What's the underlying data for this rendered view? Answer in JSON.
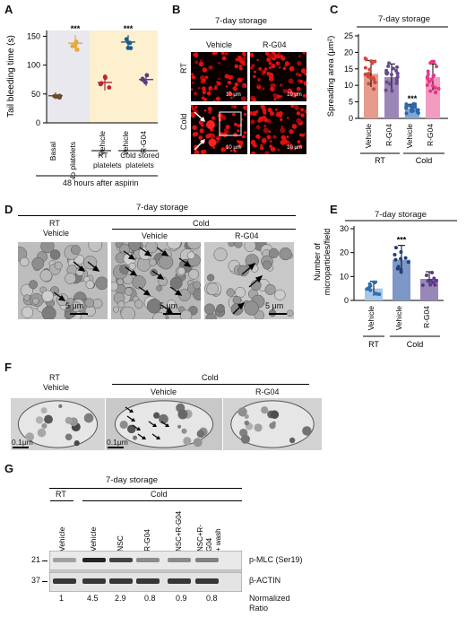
{
  "panels": {
    "A": "A",
    "B": "B",
    "C": "C",
    "D": "D",
    "E": "E",
    "F": "F",
    "G": "G"
  },
  "panelA": {
    "ylabel": "Tail bleeding time (s)",
    "categories": [
      "Basal",
      "No platelets",
      "Vehicle",
      "Vehicle",
      "R-G04"
    ],
    "group1": "RT platelets",
    "group2": "Cold stored platelets",
    "footer": "48 hours after aspirin",
    "yticks": [
      "0",
      "50",
      "100",
      "150"
    ],
    "sig": "***"
  },
  "panelB": {
    "title": "7-day storage",
    "cols": [
      "Vehicle",
      "R-G04"
    ],
    "rows": [
      "RT",
      "Cold"
    ],
    "scale": "10 μm"
  },
  "panelC": {
    "title": "7-day storage",
    "ylabel": "Spreading area (μm²)",
    "categories": [
      "Vehicle",
      "R-G04",
      "Vehicle",
      "R-G04"
    ],
    "groups": [
      "RT",
      "Cold"
    ],
    "yticks": [
      "0",
      "5",
      "10",
      "15",
      "20",
      "25"
    ],
    "sig": "***"
  },
  "panelD": {
    "title": "7-day storage",
    "rt": "RT",
    "rt_sub": "Vehicle",
    "cold": "Cold",
    "cold_labels": [
      "Vehicle",
      "R-G04"
    ],
    "scale": "5 μm"
  },
  "panelE": {
    "title": "7-day storage",
    "ylabel": "Number of microparticles/field",
    "categories": [
      "Vehicle",
      "Vehicle",
      "R-G04"
    ],
    "groups": [
      "RT",
      "Cold"
    ],
    "yticks": [
      "0",
      "10",
      "20",
      "30"
    ],
    "sig": "***"
  },
  "panelF": {
    "rt": "RT",
    "rt_sub": "Vehicle",
    "cold": "Cold",
    "cold_labels": [
      "Vehicle",
      "R-G04"
    ],
    "scale": "0.1μm"
  },
  "panelG": {
    "title": "7-day storage",
    "rt": "RT",
    "cold": "Cold",
    "lanes": [
      "Vehicle",
      "Vehicle",
      "NSC",
      "R-G04",
      "NSC+R-G04",
      "NSC+R-G04 + wash"
    ],
    "mw": [
      "21",
      "37"
    ],
    "bands": [
      "p-MLC (Ser19)",
      "β-ACTIN"
    ],
    "ratios": [
      "1",
      "4.5",
      "2.9",
      "0.8",
      "0.9",
      "0.8"
    ],
    "ratio_label": "Normalized Ratio"
  },
  "chart_data": [
    {
      "type": "scatter",
      "ylabel": "Tail bleeding time (s)",
      "categories": [
        "Basal",
        "No platelets",
        "RT platelets Vehicle",
        "Cold stored platelets Vehicle",
        "Cold stored platelets R-G04"
      ],
      "means": [
        47,
        138,
        70,
        140,
        75
      ],
      "sd": [
        6,
        14,
        14,
        12,
        11
      ],
      "ylim": [
        0,
        160
      ]
    },
    {
      "type": "bar",
      "ylabel": "Spreading area (μm²)",
      "categories": [
        "RT Vehicle",
        "RT R-G04",
        "Cold Vehicle",
        "Cold R-G04"
      ],
      "values": [
        13.5,
        12.5,
        3.0,
        12.5
      ],
      "sd": [
        4,
        4,
        1.3,
        4
      ],
      "ylim": [
        0,
        25
      ]
    },
    {
      "type": "bar",
      "ylabel": "Number of microparticles/field",
      "categories": [
        "RT Vehicle",
        "Cold Vehicle",
        "Cold R-G04"
      ],
      "values": [
        5,
        17,
        9
      ],
      "sd": [
        3,
        6,
        3
      ],
      "ylim": [
        0,
        30
      ]
    }
  ]
}
